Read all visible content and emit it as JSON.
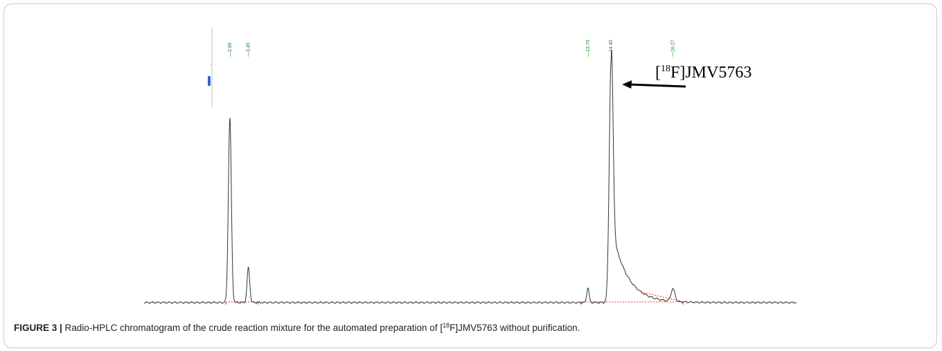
{
  "chart_data": {
    "type": "line",
    "title": "",
    "xlabel": "",
    "ylabel": "",
    "xlim": [
      0.3,
      20.0
    ],
    "ylim": [
      0,
      100
    ],
    "baseline": 0,
    "peaks": [
      {
        "rt": 2.89,
        "label": "2.89",
        "height": 74,
        "sigma": 0.045,
        "tail": 0.0
      },
      {
        "rt": 3.45,
        "label": "3.45",
        "height": 14,
        "sigma": 0.04,
        "tail": 0.0
      },
      {
        "rt": 13.7,
        "label": "13.70",
        "height": 6,
        "sigma": 0.035,
        "tail": 0.0
      },
      {
        "rt": 14.4,
        "label": "14.40",
        "height": 97,
        "sigma": 0.055,
        "tail": 0.45
      },
      {
        "rt": 16.27,
        "label": "16.27",
        "height": 5,
        "sigma": 0.06,
        "tail": 0.0
      }
    ],
    "annotation": {
      "pre": "[",
      "sup": "18",
      "post": "F]JMV5763",
      "points_to_rt": 14.4
    },
    "colors": {
      "trace": "#333333",
      "peak_labels": "#1a8a1a",
      "integration_baseline": "#e0301e"
    }
  },
  "caption": {
    "figure_label": "FIGURE 3 |",
    "text_pre": " Radio-HPLC chromatogram of the crude reaction mixture for the automated preparation of [",
    "text_sup": "18",
    "text_post": "F]JMV5763 without purification."
  }
}
